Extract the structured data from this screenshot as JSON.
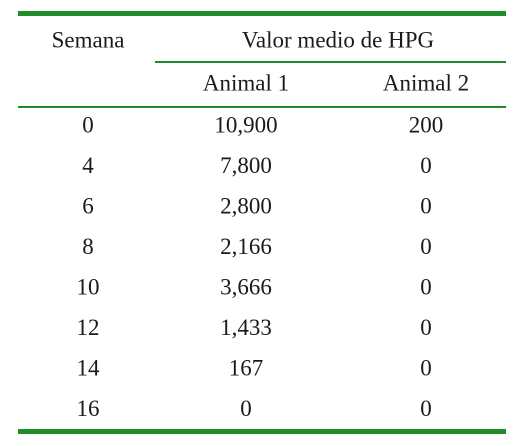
{
  "table": {
    "header": {
      "week": "Semana",
      "group": "Valor medio de HPG",
      "columns": [
        "Animal 1",
        "Animal 2"
      ]
    },
    "rows": [
      [
        "0",
        "10,900",
        "200"
      ],
      [
        "4",
        "7,800",
        "0"
      ],
      [
        "6",
        "2,800",
        "0"
      ],
      [
        "8",
        "2,166",
        "0"
      ],
      [
        "10",
        "3,666",
        "0"
      ],
      [
        "12",
        "1,433",
        "0"
      ],
      [
        "14",
        "167",
        "0"
      ],
      [
        "16",
        "0",
        "0"
      ]
    ]
  }
}
